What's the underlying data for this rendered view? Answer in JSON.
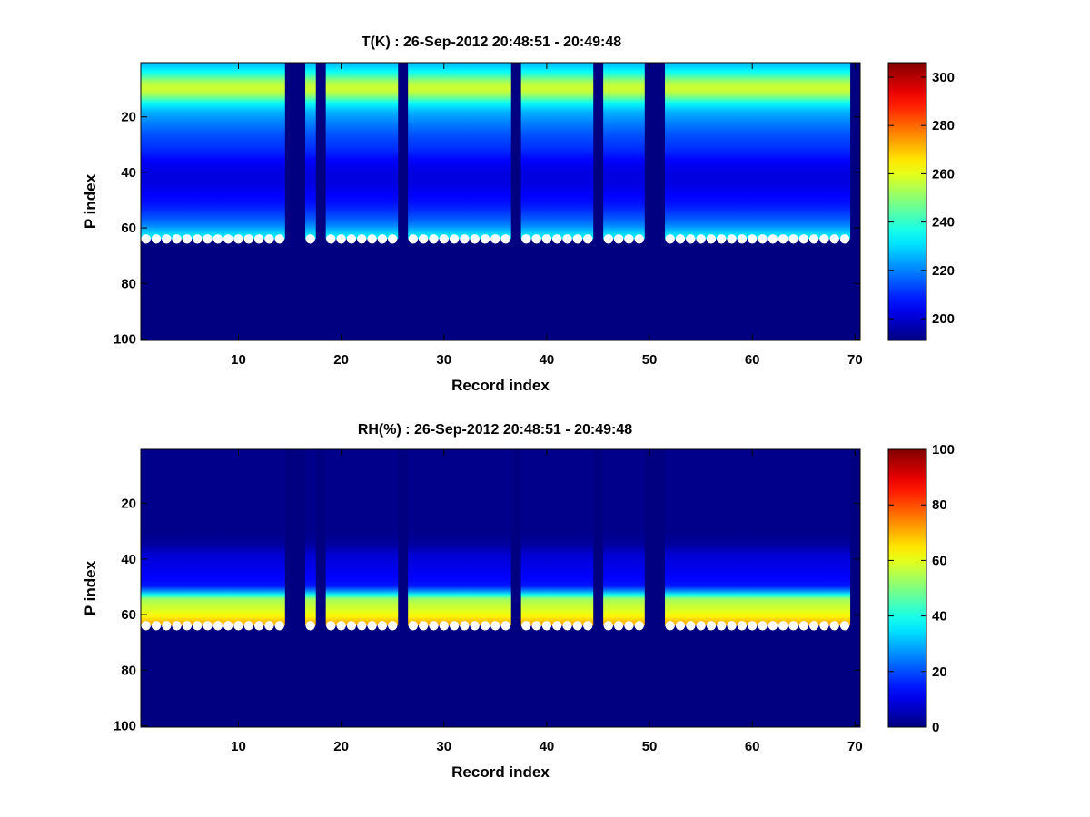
{
  "chart_data": [
    {
      "type": "heatmap",
      "title": "T(K) : 26-Sep-2012 20:48:51 - 20:49:48",
      "xlabel": "Record index",
      "ylabel": "P index",
      "xlim": [
        0.5,
        70.5
      ],
      "ylim": [
        100.5,
        0.5
      ],
      "y_reversed": true,
      "x_ticks": [
        10,
        20,
        30,
        40,
        50,
        60,
        70
      ],
      "y_ticks": [
        20,
        40,
        60,
        80,
        100
      ],
      "colormap": "jet",
      "colorbar": {
        "range": [
          191,
          306
        ],
        "ticks": [
          200,
          220,
          240,
          260,
          280,
          300
        ]
      },
      "fill_value": 191,
      "missing_records": [
        15,
        16,
        18,
        26,
        37,
        45,
        50,
        51,
        70
      ],
      "marker_level": 64,
      "marker_color": "#ffffff",
      "profile": [
        {
          "p": 1,
          "value": 226
        },
        {
          "p": 3,
          "value": 232
        },
        {
          "p": 5,
          "value": 240
        },
        {
          "p": 7,
          "value": 251
        },
        {
          "p": 9,
          "value": 258
        },
        {
          "p": 11,
          "value": 257
        },
        {
          "p": 13,
          "value": 247
        },
        {
          "p": 15,
          "value": 235
        },
        {
          "p": 18,
          "value": 226
        },
        {
          "p": 22,
          "value": 220
        },
        {
          "p": 27,
          "value": 214
        },
        {
          "p": 32,
          "value": 210
        },
        {
          "p": 36,
          "value": 205
        },
        {
          "p": 40,
          "value": 202
        },
        {
          "p": 44,
          "value": 202
        },
        {
          "p": 48,
          "value": 205
        },
        {
          "p": 52,
          "value": 208
        },
        {
          "p": 56,
          "value": 214
        },
        {
          "p": 59,
          "value": 220
        },
        {
          "p": 61,
          "value": 227
        },
        {
          "p": 63,
          "value": 232
        }
      ]
    },
    {
      "type": "heatmap",
      "title": "RH(%) : 26-Sep-2012 20:48:51 - 20:49:48",
      "xlabel": "Record index",
      "ylabel": "P index",
      "xlim": [
        0.5,
        70.5
      ],
      "ylim": [
        100.5,
        0.5
      ],
      "y_reversed": true,
      "x_ticks": [
        10,
        20,
        30,
        40,
        50,
        60,
        70
      ],
      "y_ticks": [
        20,
        40,
        60,
        80,
        100
      ],
      "colormap": "jet",
      "colorbar": {
        "range": [
          0,
          100
        ],
        "ticks": [
          0,
          20,
          40,
          60,
          80,
          100
        ]
      },
      "fill_value": 0,
      "missing_records": [
        15,
        16,
        18,
        26,
        37,
        45,
        50,
        51,
        70
      ],
      "marker_level": 64,
      "marker_color": "#ffffff",
      "profile": [
        {
          "p": 1,
          "value": 1
        },
        {
          "p": 30,
          "value": 1
        },
        {
          "p": 35,
          "value": 3
        },
        {
          "p": 38,
          "value": 8
        },
        {
          "p": 42,
          "value": 10
        },
        {
          "p": 46,
          "value": 12
        },
        {
          "p": 50,
          "value": 15
        },
        {
          "p": 52,
          "value": 30
        },
        {
          "p": 54,
          "value": 52
        },
        {
          "p": 56,
          "value": 56
        },
        {
          "p": 58,
          "value": 58
        },
        {
          "p": 60,
          "value": 62
        },
        {
          "p": 62,
          "value": 66
        },
        {
          "p": 63,
          "value": 72
        }
      ]
    }
  ]
}
